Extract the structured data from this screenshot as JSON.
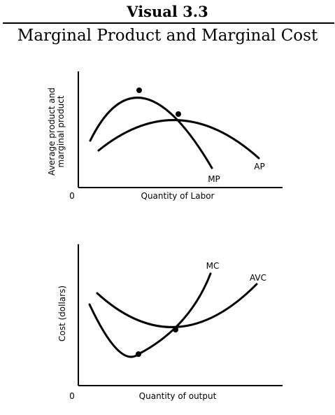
{
  "header": {
    "visual_label": "Visual 3.3",
    "title": "Marginal Product and Marginal Cost"
  },
  "panels": [
    {
      "ylabel_lines": [
        "Average product and",
        "marginal product"
      ],
      "xlabel": "Quantity of Labor",
      "origin_label": "0",
      "curves": [
        {
          "label": "MP"
        },
        {
          "label": "AP"
        }
      ]
    },
    {
      "ylabel_lines": [
        "Cost (dollars)"
      ],
      "xlabel": "Quantity of output",
      "origin_label": "0",
      "curves": [
        {
          "label": "MC"
        },
        {
          "label": "AVC"
        }
      ]
    }
  ],
  "colors": {
    "ink": "#000000",
    "background": "#ffffff"
  }
}
